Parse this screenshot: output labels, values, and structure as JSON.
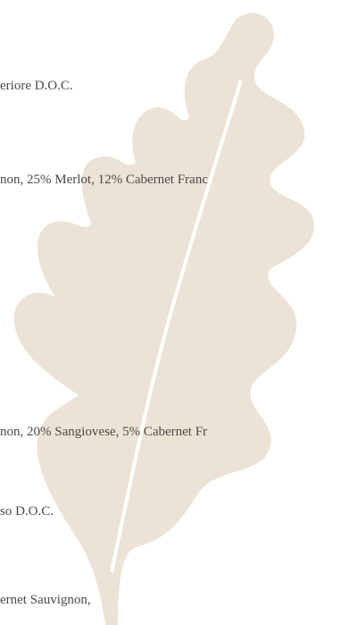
{
  "lines": [
    "eriore D.O.C.",
    "non, 25% Merlot, 12% Cabernet Franc",
    "non, 20% Sangiovese, 5% Cabernet Fr",
    "so D.O.C.",
    "ernet Sauvignon,"
  ]
}
